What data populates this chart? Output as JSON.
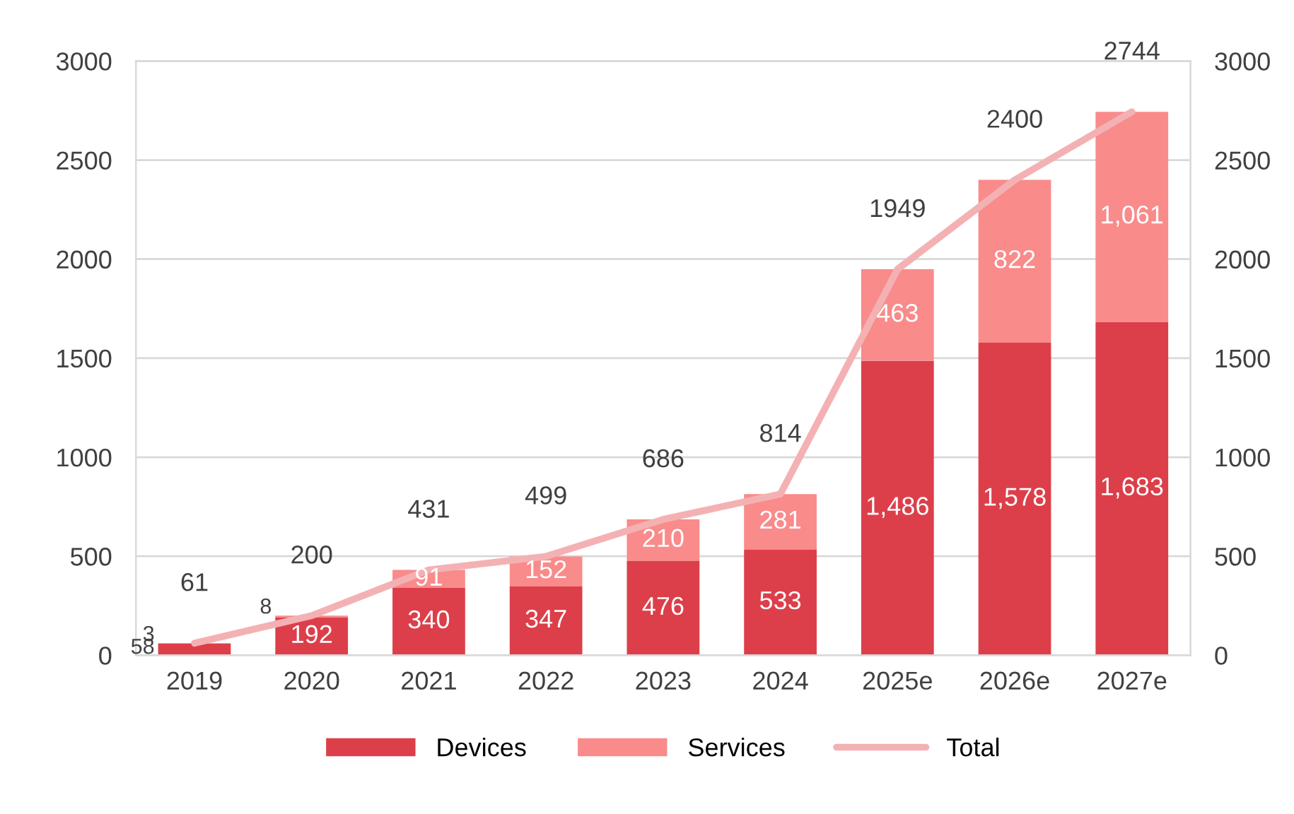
{
  "chart_data": {
    "type": "bar",
    "stacked": true,
    "categories": [
      "2019",
      "2020",
      "2021",
      "2022",
      "2023",
      "2024",
      "2025e",
      "2026e",
      "2027e"
    ],
    "series": [
      {
        "name": "Devices",
        "type": "bar",
        "color": "#dc3f4a",
        "values": [
          58,
          192,
          340,
          347,
          476,
          533,
          1486,
          1578,
          1683
        ],
        "value_labels": [
          "58",
          "192",
          "340",
          "347",
          "476",
          "533",
          "1,486",
          "1,578",
          "1,683"
        ]
      },
      {
        "name": "Services",
        "type": "bar",
        "color": "#f98b8b",
        "values": [
          3,
          8,
          91,
          152,
          210,
          281,
          463,
          822,
          1061
        ],
        "value_labels": [
          "3",
          "8",
          "91",
          "152",
          "210",
          "281",
          "463",
          "822",
          "1,061"
        ]
      },
      {
        "name": "Total",
        "type": "line",
        "axis": "y2",
        "color": "#f4b1b3",
        "values": [
          61,
          200,
          431,
          499,
          686,
          814,
          1949,
          2400,
          2744
        ],
        "value_labels": [
          "61",
          "200",
          "431",
          "499",
          "686",
          "814",
          "1949",
          "2400",
          "2744"
        ]
      }
    ],
    "ylim": [
      0,
      3000
    ],
    "yticks": [
      0,
      500,
      1000,
      1500,
      2000,
      2500,
      3000
    ],
    "y2lim": [
      0,
      3000
    ],
    "y2ticks": [
      0,
      500,
      1000,
      1500,
      2000,
      2500,
      3000
    ],
    "grid": "y",
    "legend": "bottom",
    "marker": "none",
    "line_style": "solid"
  }
}
